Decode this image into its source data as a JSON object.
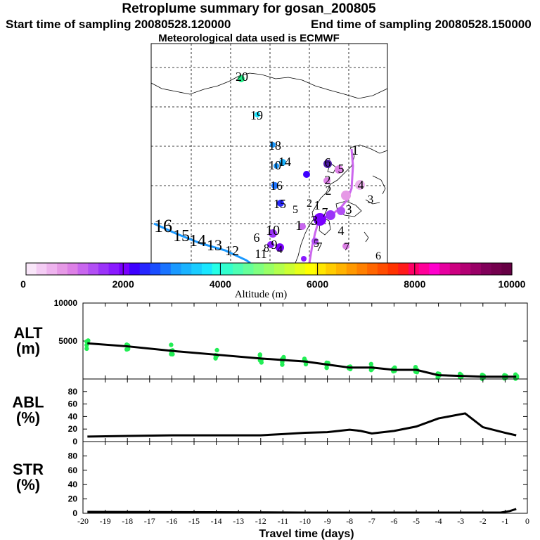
{
  "header": {
    "title": "Retroplume summary for gosan_200805",
    "start": "Start time of sampling 20080528.120000",
    "end": "End time of sampling 20080528.150000",
    "met": "Meteorological data used is ECMWF"
  },
  "map": {
    "number_labels": [
      "20",
      "19",
      "18",
      "14",
      "10",
      "16",
      "15",
      "1",
      "2",
      "3",
      "4",
      "5",
      "6",
      "7",
      "1",
      "2",
      "3",
      "4",
      "5",
      "6",
      "7",
      "16",
      "15",
      "14",
      "13",
      "12",
      "11",
      "10",
      "9",
      "8",
      "7",
      "6",
      "5",
      "4",
      "3",
      "2",
      "1"
    ]
  },
  "colorbar": {
    "ticks": [
      "0",
      "2000",
      "4000",
      "6000",
      "8000",
      "10000"
    ],
    "label": "Altitude (m)",
    "colors": [
      "#f9e6f9",
      "#f4ccf4",
      "#eeb3ee",
      "#e699e6",
      "#dd80e6",
      "#c866ee",
      "#b24ff4",
      "#9b33f9",
      "#8a1aff",
      "#7a00ff",
      "#3d00ff",
      "#2626ff",
      "#1a4dff",
      "#1a73ff",
      "#1a99ff",
      "#1ab3ff",
      "#1accff",
      "#1ae6ff",
      "#26ffe6",
      "#33ffcc",
      "#4dffb3",
      "#66ff99",
      "#80ff80",
      "#99ff66",
      "#b3ff4d",
      "#ccff33",
      "#e6ff1a",
      "#ffff00",
      "#ffe600",
      "#ffcc00",
      "#ffb300",
      "#ff9900",
      "#ff8000",
      "#ff6600",
      "#ff4d00",
      "#ff3300",
      "#ff1a1a",
      "#ff0066",
      "#ff0099",
      "#ff00cc",
      "#e6009f",
      "#cc0080",
      "#b30073",
      "#990066",
      "#800059",
      "#73004d",
      "#660044"
    ]
  },
  "chart_data": [
    {
      "type": "scatter+line",
      "name": "ALT",
      "ylabel": "ALT\n(m)",
      "ylabel_lines": [
        "ALT",
        "(m)"
      ],
      "ylim": [
        0,
        10000
      ],
      "yticks": [
        "5000",
        "10000"
      ],
      "xlim": [
        -20,
        0
      ],
      "line": {
        "x": [
          -19.8,
          -18,
          -16,
          -14,
          -12,
          -11,
          -10,
          -9,
          -8,
          -7,
          -6,
          -5,
          -4,
          -3,
          -2,
          -1,
          -0.5
        ],
        "y": [
          4700,
          4300,
          3700,
          3200,
          2700,
          2500,
          2300,
          1900,
          1500,
          1500,
          1200,
          1200,
          500,
          400,
          300,
          300,
          300
        ]
      },
      "scatter_color": "#22ee55"
    },
    {
      "type": "line",
      "name": "ABL",
      "ylabel_lines": [
        "ABL",
        "(%)"
      ],
      "ylim": [
        0,
        100
      ],
      "yticks": [
        "0",
        "20",
        "40",
        "60",
        "80"
      ],
      "x": [
        -19.8,
        -18,
        -16,
        -14,
        -12,
        -11,
        -10,
        -9,
        -8,
        -7.5,
        -7,
        -6,
        -5,
        -4,
        -2.8,
        -2,
        -1,
        -0.5
      ],
      "y": [
        8,
        9,
        10,
        10,
        10,
        12,
        14,
        15,
        19,
        17,
        13,
        17,
        24,
        37,
        45,
        23,
        14,
        10
      ]
    },
    {
      "type": "line",
      "name": "STR",
      "ylabel_lines": [
        "STR",
        "(%)"
      ],
      "ylim": [
        0,
        100
      ],
      "yticks": [
        "0",
        "20",
        "40",
        "60",
        "80"
      ],
      "x": [
        -19.8,
        -10,
        -3,
        -1.2,
        -0.8,
        -0.5
      ],
      "y": [
        2,
        1,
        1,
        1,
        3,
        6
      ]
    }
  ],
  "xaxis": {
    "ticks": [
      "-20",
      "-19",
      "-18",
      "-17",
      "-16",
      "-15",
      "-14",
      "-13",
      "-12",
      "-11",
      "-10",
      "-9",
      "-8",
      "-7",
      "-6",
      "-5",
      "-4",
      "-3",
      "-2",
      "-1",
      "0"
    ],
    "label": "Travel time (days)"
  }
}
